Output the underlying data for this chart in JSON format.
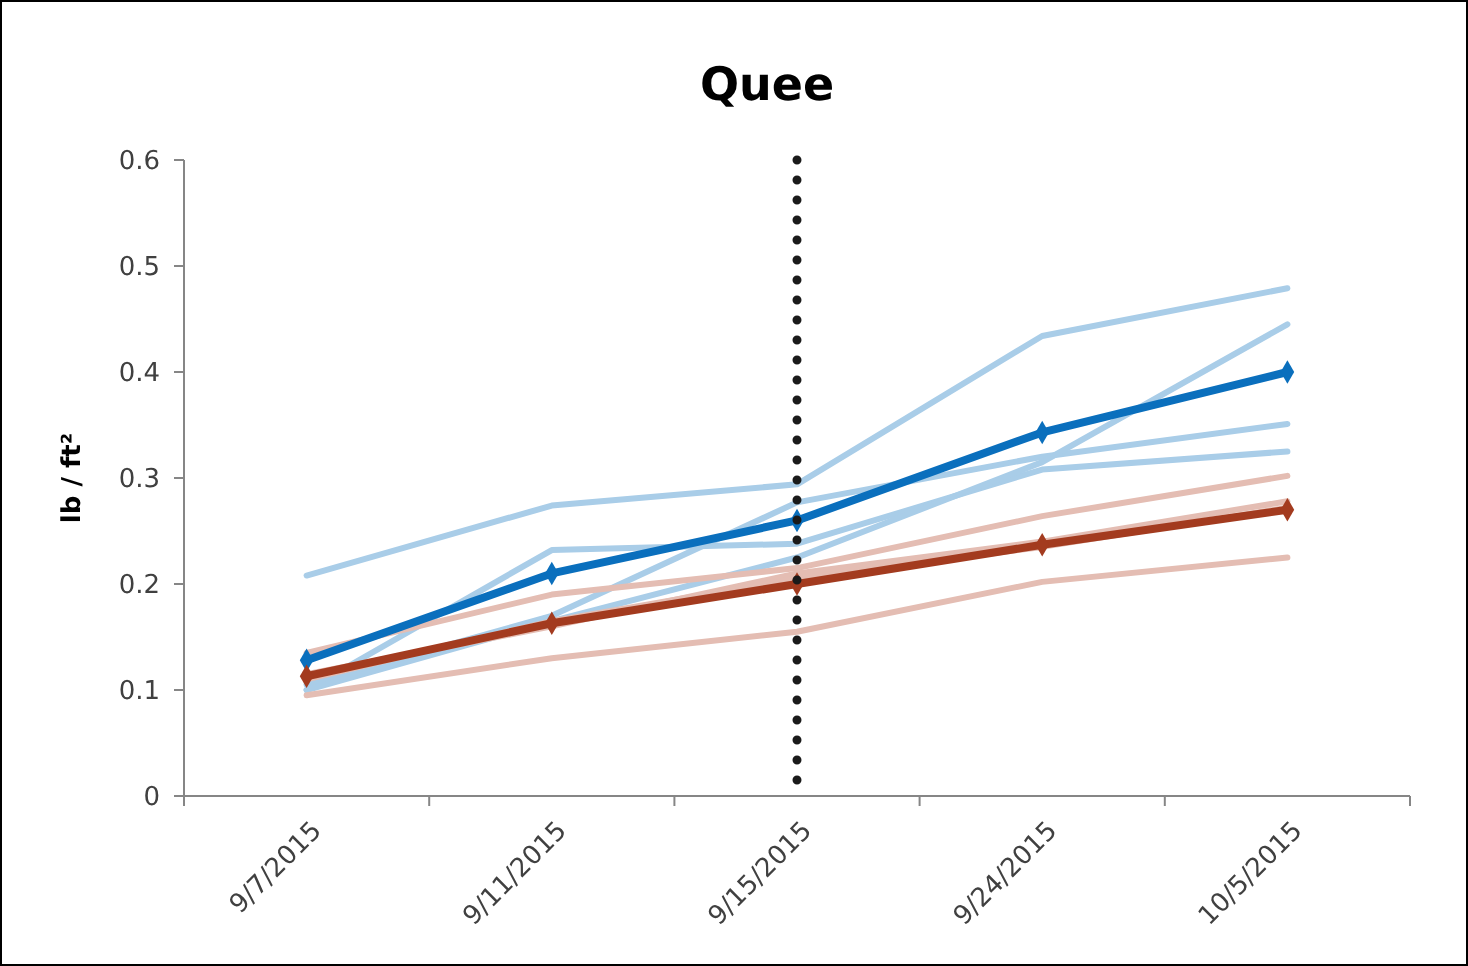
{
  "chart_data": {
    "type": "line",
    "title": "Quee",
    "ylabel": "lb / ft²",
    "categories": [
      "9/7/2015",
      "9/11/2015",
      "9/15/2015",
      "9/24/2015",
      "10/5/2015"
    ],
    "ylim": [
      0,
      0.6
    ],
    "yticks": [
      0,
      0.1,
      0.2,
      0.3,
      0.4,
      0.5,
      0.6
    ],
    "grid": false,
    "series": [
      {
        "color": "#a9cde8",
        "marker": "none",
        "values": [
          0.208,
          0.274,
          0.294,
          0.434,
          0.479
        ]
      },
      {
        "color": "#a9cde8",
        "marker": "none",
        "values": [
          0.1,
          0.232,
          0.238,
          0.308,
          0.325
        ]
      },
      {
        "color": "#a9cde8",
        "marker": "none",
        "values": [
          0.105,
          0.17,
          0.277,
          0.32,
          0.351
        ]
      },
      {
        "color": "#a9cde8",
        "marker": "none",
        "values": [
          0.1,
          0.165,
          0.225,
          0.315,
          0.445
        ]
      },
      {
        "color": "#e4bdb3",
        "marker": "none",
        "values": [
          0.135,
          0.19,
          0.215,
          0.264,
          0.302
        ]
      },
      {
        "color": "#e4bdb3",
        "marker": "none",
        "values": [
          0.095,
          0.13,
          0.155,
          0.202,
          0.225
        ]
      },
      {
        "color": "#e4bdb3",
        "marker": "none",
        "values": [
          0.115,
          0.16,
          0.21,
          0.24,
          0.278
        ]
      },
      {
        "color": "#e4bdb3",
        "marker": "none",
        "values": [
          0.11,
          0.165,
          0.205,
          0.235,
          0.272
        ]
      },
      {
        "color": "#0a6fbd",
        "marker": "diamond",
        "values": [
          0.128,
          0.21,
          0.26,
          0.343,
          0.4
        ]
      },
      {
        "color": "#a33b1f",
        "marker": "diamond",
        "values": [
          0.113,
          0.163,
          0.2,
          0.237,
          0.27
        ]
      }
    ],
    "ref_lines": [
      {
        "axis": "x",
        "value": "9/15/2015",
        "color": "#1a1a1a",
        "line_style": "dotted"
      }
    ]
  }
}
